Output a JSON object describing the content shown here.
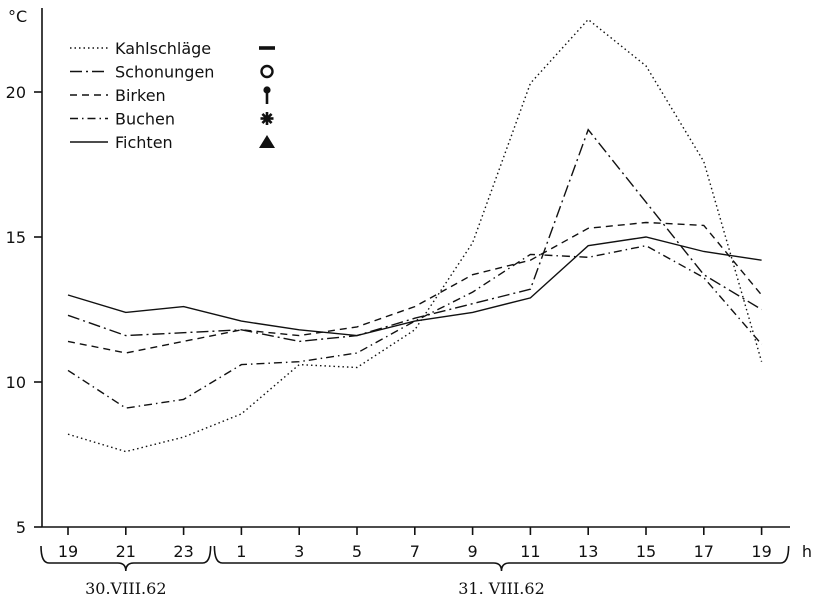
{
  "chart_data": {
    "type": "line",
    "ylabel": "°C",
    "xlabel": "h",
    "ylim": [
      5,
      23
    ],
    "yticks": [
      5,
      10,
      15,
      20
    ],
    "x_labels": [
      "19",
      "21",
      "23",
      "1",
      "3",
      "5",
      "7",
      "9",
      "11",
      "13",
      "15",
      "17",
      "19"
    ],
    "date_groups": [
      {
        "label": "30.VIII.62",
        "from": 0,
        "to": 2
      },
      {
        "label": "31. VIII.62",
        "from": 3,
        "to": 12
      }
    ],
    "legend_position": "top-left",
    "series": [
      {
        "name": "Kahlschläge",
        "style": "dotted",
        "symbol": "—",
        "values": [
          8.2,
          7.6,
          8.1,
          8.9,
          10.6,
          10.5,
          11.8,
          14.8,
          20.3,
          22.5,
          20.9,
          17.6,
          10.7
        ]
      },
      {
        "name": "Schonungen",
        "style": "dash-dot",
        "symbol": "O",
        "values": [
          12.3,
          11.6,
          11.7,
          11.8,
          11.4,
          11.6,
          12.2,
          12.7,
          13.2,
          18.7,
          16.2,
          13.7,
          12.5
        ]
      },
      {
        "name": "Birken",
        "style": "dashed",
        "symbol": "pin",
        "values": [
          11.4,
          11.0,
          11.4,
          11.8,
          11.6,
          11.9,
          12.6,
          13.7,
          14.2,
          15.3,
          15.5,
          15.4,
          13.0
        ]
      },
      {
        "name": "Buchen",
        "style": "dash-dot-fine",
        "symbol": "star",
        "values": [
          10.4,
          9.1,
          9.4,
          10.6,
          10.7,
          11.0,
          12.1,
          13.1,
          14.4,
          14.3,
          14.7,
          13.6,
          11.3
        ]
      },
      {
        "name": "Fichten",
        "style": "solid",
        "symbol": "triangle",
        "values": [
          13.0,
          12.4,
          12.6,
          12.1,
          11.8,
          11.6,
          12.1,
          12.4,
          12.9,
          14.7,
          15.0,
          14.5,
          14.2
        ]
      }
    ]
  }
}
